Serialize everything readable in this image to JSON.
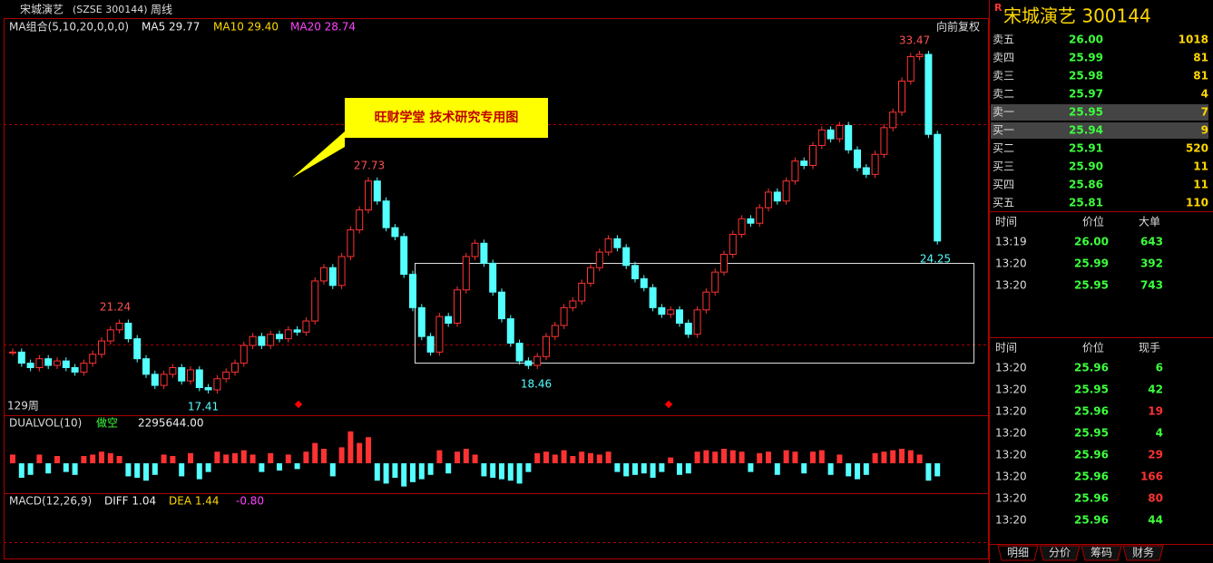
{
  "header": {
    "name": "宋城演艺",
    "code": "(SZSE 300144)",
    "period": "周线"
  },
  "main": {
    "ma_label": "MA组合(5,10,20,0,0,0)",
    "ma5": "MA5 29.77",
    "ma10": "MA10 29.40",
    "ma20": "MA20 28.74",
    "adjust": "向前复权",
    "callout": "旺财学堂 技术研究专用图",
    "count": "129周",
    "high": "33.47",
    "high2": "27.73",
    "high3": "21.24",
    "low": "17.41",
    "low2": "18.46",
    "last": "24.25"
  },
  "candles": {
    "up_color": "#ff3232",
    "down_color": "#54ffff",
    "closes": [
      19.6,
      19.1,
      18.9,
      19.3,
      19.0,
      19.2,
      18.9,
      18.7,
      19.1,
      19.5,
      20.1,
      20.6,
      20.9,
      20.2,
      19.3,
      18.6,
      18.1,
      18.6,
      18.9,
      18.3,
      18.8,
      18.0,
      17.9,
      18.4,
      18.7,
      19.1,
      19.9,
      20.3,
      19.9,
      20.4,
      20.2,
      20.6,
      20.5,
      21.0,
      22.8,
      23.4,
      22.6,
      23.9,
      25.1,
      26.0,
      27.3,
      26.4,
      25.2,
      24.8,
      23.1,
      21.6,
      20.3,
      19.6,
      21.2,
      20.9,
      22.4,
      23.9,
      24.5,
      23.6,
      22.3,
      21.1,
      20.0,
      19.2,
      19.0,
      19.4,
      20.3,
      20.8,
      21.6,
      21.9,
      22.7,
      23.4,
      24.1,
      24.7,
      24.3,
      23.5,
      22.9,
      22.5,
      21.6,
      21.3,
      21.5,
      20.9,
      20.4,
      21.5,
      22.3,
      23.2,
      24.0,
      24.9,
      25.6,
      25.4,
      26.1,
      26.8,
      26.4,
      27.3,
      28.2,
      28.0,
      28.9,
      29.6,
      29.2,
      29.8,
      28.7,
      27.9,
      27.6,
      28.5,
      29.7,
      30.4,
      31.8,
      32.9,
      33.0,
      29.4,
      24.6
    ],
    "volumes": [
      6,
      -10,
      -8,
      6,
      -7,
      5,
      -6,
      -8,
      5,
      6,
      8,
      7,
      5,
      -9,
      -10,
      -12,
      -8,
      6,
      5,
      -9,
      7,
      -11,
      -6,
      8,
      6,
      7,
      9,
      6,
      -6,
      7,
      -5,
      6,
      -4,
      8,
      14,
      10,
      -9,
      11,
      22,
      14,
      18,
      -12,
      -14,
      -10,
      -16,
      -13,
      -11,
      -8,
      9,
      -7,
      8,
      10,
      6,
      -9,
      -10,
      -11,
      -12,
      -14,
      -6,
      7,
      8,
      6,
      9,
      5,
      8,
      7,
      6,
      8,
      -6,
      -9,
      -8,
      -7,
      -10,
      -6,
      4,
      -8,
      -7,
      8,
      9,
      8,
      10,
      9,
      8,
      -6,
      7,
      8,
      -8,
      9,
      8,
      -7,
      8,
      9,
      -8,
      6,
      -9,
      -11,
      -8,
      7,
      8,
      9,
      10,
      9,
      6,
      -12,
      -9
    ]
  },
  "vol": {
    "label": "DUALVOL(10)",
    "mode": "做空",
    "value": "2295644.00"
  },
  "macd": {
    "label": "MACD(12,26,9)",
    "diff": "DIFF 1.04",
    "dea": "DEA 1.44",
    "macd": "-0.80"
  },
  "panel": {
    "title": "宋城演艺  300144",
    "order_book": [
      [
        "卖五",
        "26.00",
        "1018"
      ],
      [
        "卖四",
        "25.99",
        "81"
      ],
      [
        "卖三",
        "25.98",
        "81"
      ],
      [
        "卖二",
        "25.97",
        "4"
      ],
      [
        "卖一",
        "25.95",
        "7"
      ],
      [
        "买一",
        "25.94",
        "9"
      ],
      [
        "买二",
        "25.91",
        "520"
      ],
      [
        "买三",
        "25.90",
        "11"
      ],
      [
        "买四",
        "25.86",
        "11"
      ],
      [
        "买五",
        "25.81",
        "110"
      ]
    ],
    "big": {
      "headers": [
        "时间",
        "价位",
        "大单"
      ],
      "rows": [
        [
          "13:19",
          "26.00",
          "643"
        ],
        [
          "13:20",
          "25.99",
          "392"
        ],
        [
          "13:20",
          "25.95",
          "743"
        ]
      ]
    },
    "trades": {
      "headers": [
        "时间",
        "价位",
        "现手"
      ],
      "rows": [
        [
          "13:20",
          "25.96",
          "6",
          "#3cff3c"
        ],
        [
          "13:20",
          "25.95",
          "42",
          "#3cff3c"
        ],
        [
          "13:20",
          "25.96",
          "19",
          "#ff3232"
        ],
        [
          "13:20",
          "25.95",
          "4",
          "#3cff3c"
        ],
        [
          "13:20",
          "25.96",
          "29",
          "#ff3232"
        ],
        [
          "13:20",
          "25.96",
          "166",
          "#ff3232"
        ],
        [
          "13:20",
          "25.96",
          "80",
          "#ff3232"
        ],
        [
          "13:20",
          "25.96",
          "44",
          "#3cff3c"
        ]
      ]
    },
    "tabs": [
      "明细",
      "分价",
      "筹码",
      "财务"
    ]
  }
}
